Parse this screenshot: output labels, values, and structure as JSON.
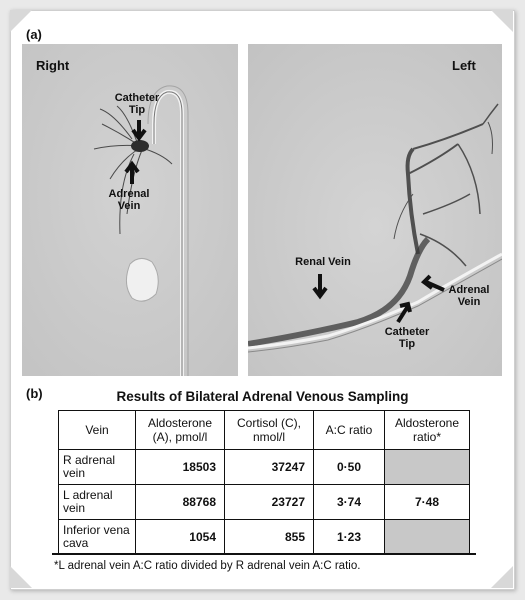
{
  "panel_a_label": "(a)",
  "panel_b_label": "(b)",
  "right_image": {
    "side_label": "Right",
    "catheter_tip_label": "Catheter\nTip",
    "adrenal_vein_label": "Adrenal\nVein"
  },
  "left_image": {
    "side_label": "Left",
    "renal_vein_label": "Renal Vein",
    "adrenal_vein_label": "Adrenal\nVein",
    "catheter_tip_label": "Catheter\nTip"
  },
  "table": {
    "title": "Results of Bilateral Adrenal Venous Sampling",
    "headers": [
      "Vein",
      "Aldosterone (A), pmol/l",
      "Cortisol (C), nmol/l",
      "A:C ratio",
      "Aldosterone ratio*"
    ],
    "rows": [
      {
        "vein": "R adrenal vein",
        "aldosterone": "18503",
        "cortisol": "37247",
        "ac_ratio": "0·50",
        "aldo_ratio": ""
      },
      {
        "vein": "L adrenal vein",
        "aldosterone": "88768",
        "cortisol": "23727",
        "ac_ratio": "3·74",
        "aldo_ratio": "7·48"
      },
      {
        "vein": "Inferior vena cava",
        "aldosterone": "1054",
        "cortisol": "855",
        "ac_ratio": "1·23",
        "aldo_ratio": ""
      }
    ],
    "footnote": "*L adrenal vein A:C ratio divided by R adrenal vein A:C ratio."
  }
}
